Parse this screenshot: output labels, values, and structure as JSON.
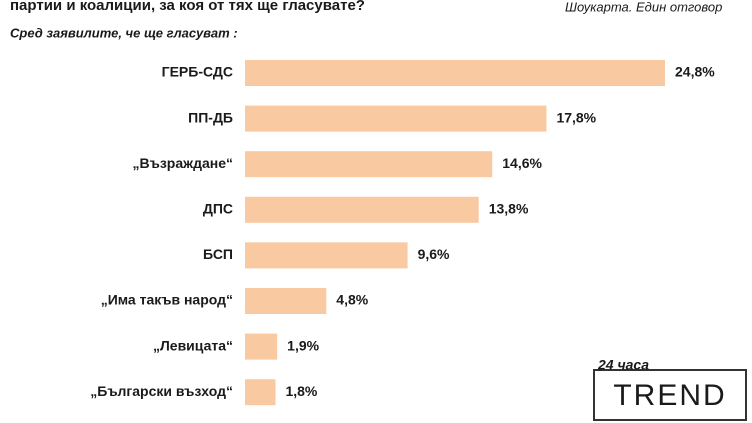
{
  "chart_data": {
    "type": "bar",
    "title": "партии и коалиции, за коя от тях ще гласувате?",
    "note": "Шоукарта. Един отговор",
    "subtitle": "Сред заявилите, че ще гласуват :",
    "categories": [
      "ГЕРБ-СДС",
      "ПП-ДБ",
      "„Възраждане“",
      "ДПС",
      "БСП",
      "„Има такъв народ“",
      "„Левицата“",
      "„Български възход“"
    ],
    "values": [
      24.8,
      17.8,
      14.6,
      13.8,
      9.6,
      4.8,
      1.9,
      1.8
    ],
    "value_labels": [
      "24,8%",
      "17,8%",
      "14,6%",
      "13,8%",
      "9,6%",
      "4,8%",
      "1,9%",
      "1,8%"
    ],
    "color": "#f9c9a2",
    "logo": {
      "top": "24 часа",
      "main": "TREND"
    }
  }
}
